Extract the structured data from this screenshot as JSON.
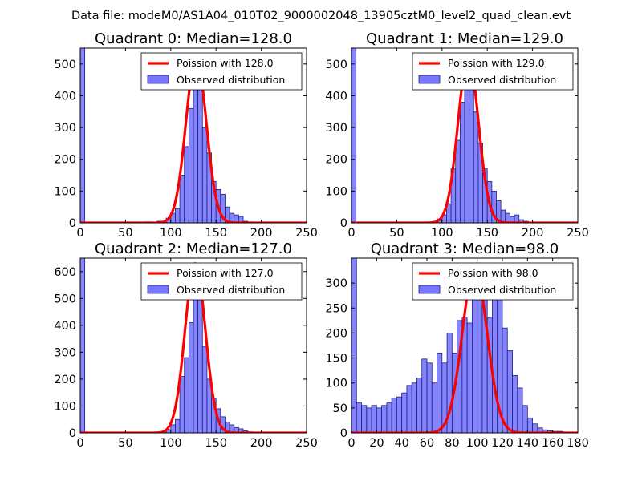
{
  "figure": {
    "suptitle": "Data file: modeM0/AS1A04_010T02_9000002048_13905cztM0_level2_quad_clean.evt",
    "colors": {
      "hist_fill": "#7777ff",
      "hist_edge": "#20207a",
      "poisson_line": "#ff0000",
      "axis": "#000000"
    }
  },
  "chart_data": [
    {
      "type": "bar",
      "title": "Quadrant 0: Median=128.0",
      "xlim": [
        0,
        250
      ],
      "ylim": [
        0,
        550
      ],
      "xticks": [
        "0",
        "50",
        "100",
        "150",
        "200",
        "250"
      ],
      "yticks": [
        "0",
        "100",
        "200",
        "300",
        "400",
        "500"
      ],
      "legend": {
        "position": "top-right",
        "entries": [
          "Poission with 128.0",
          "Observed distribution"
        ]
      },
      "histogram": {
        "bin_width": 5,
        "bins": [
          {
            "x": 0,
            "y": 550
          },
          {
            "x": 70,
            "y": 3
          },
          {
            "x": 75,
            "y": 3
          },
          {
            "x": 85,
            "y": 5
          },
          {
            "x": 95,
            "y": 15
          },
          {
            "x": 100,
            "y": 30
          },
          {
            "x": 105,
            "y": 45
          },
          {
            "x": 110,
            "y": 150
          },
          {
            "x": 115,
            "y": 240
          },
          {
            "x": 120,
            "y": 360
          },
          {
            "x": 125,
            "y": 460
          },
          {
            "x": 130,
            "y": 440
          },
          {
            "x": 135,
            "y": 300
          },
          {
            "x": 140,
            "y": 220
          },
          {
            "x": 145,
            "y": 130
          },
          {
            "x": 150,
            "y": 105
          },
          {
            "x": 155,
            "y": 90
          },
          {
            "x": 160,
            "y": 50
          },
          {
            "x": 165,
            "y": 30
          },
          {
            "x": 170,
            "y": 25
          },
          {
            "x": 175,
            "y": 20
          },
          {
            "x": 180,
            "y": 5
          },
          {
            "x": 185,
            "y": 3
          },
          {
            "x": 190,
            "y": 2
          }
        ]
      },
      "poisson": {
        "mean": 128.0,
        "peak": 520
      }
    },
    {
      "type": "bar",
      "title": "Quadrant 1: Median=129.0",
      "xlim": [
        0,
        250
      ],
      "ylim": [
        0,
        550
      ],
      "xticks": [
        "0",
        "50",
        "100",
        "150",
        "200",
        "250"
      ],
      "yticks": [
        "0",
        "100",
        "200",
        "300",
        "400",
        "500"
      ],
      "legend": {
        "position": "top-right",
        "entries": [
          "Poission with 129.0",
          "Observed distribution"
        ]
      },
      "histogram": {
        "bin_width": 5,
        "bins": [
          {
            "x": 0,
            "y": 550
          },
          {
            "x": 80,
            "y": 3
          },
          {
            "x": 90,
            "y": 5
          },
          {
            "x": 95,
            "y": 12
          },
          {
            "x": 100,
            "y": 25
          },
          {
            "x": 105,
            "y": 60
          },
          {
            "x": 110,
            "y": 170
          },
          {
            "x": 115,
            "y": 260
          },
          {
            "x": 120,
            "y": 380
          },
          {
            "x": 125,
            "y": 520
          },
          {
            "x": 130,
            "y": 470
          },
          {
            "x": 135,
            "y": 350
          },
          {
            "x": 140,
            "y": 250
          },
          {
            "x": 145,
            "y": 170
          },
          {
            "x": 150,
            "y": 130
          },
          {
            "x": 155,
            "y": 100
          },
          {
            "x": 160,
            "y": 70
          },
          {
            "x": 165,
            "y": 40
          },
          {
            "x": 170,
            "y": 30
          },
          {
            "x": 175,
            "y": 20
          },
          {
            "x": 180,
            "y": 25
          },
          {
            "x": 185,
            "y": 10
          },
          {
            "x": 190,
            "y": 5
          },
          {
            "x": 200,
            "y": 2
          }
        ]
      },
      "poisson": {
        "mean": 129.0,
        "peak": 520
      }
    },
    {
      "type": "bar",
      "title": "Quadrant 2: Median=127.0",
      "xlim": [
        0,
        250
      ],
      "ylim": [
        0,
        650
      ],
      "xticks": [
        "0",
        "50",
        "100",
        "150",
        "200",
        "250"
      ],
      "yticks": [
        "0",
        "100",
        "200",
        "300",
        "400",
        "500",
        "600"
      ],
      "legend": {
        "position": "top-right",
        "entries": [
          "Poission with 127.0",
          "Observed distribution"
        ]
      },
      "histogram": {
        "bin_width": 5,
        "bins": [
          {
            "x": 0,
            "y": 650
          },
          {
            "x": 80,
            "y": 3
          },
          {
            "x": 90,
            "y": 5
          },
          {
            "x": 95,
            "y": 12
          },
          {
            "x": 100,
            "y": 30
          },
          {
            "x": 105,
            "y": 50
          },
          {
            "x": 110,
            "y": 210
          },
          {
            "x": 115,
            "y": 280
          },
          {
            "x": 120,
            "y": 410
          },
          {
            "x": 125,
            "y": 590
          },
          {
            "x": 130,
            "y": 520
          },
          {
            "x": 135,
            "y": 320
          },
          {
            "x": 140,
            "y": 200
          },
          {
            "x": 145,
            "y": 130
          },
          {
            "x": 150,
            "y": 90
          },
          {
            "x": 155,
            "y": 60
          },
          {
            "x": 160,
            "y": 40
          },
          {
            "x": 165,
            "y": 30
          },
          {
            "x": 170,
            "y": 20
          },
          {
            "x": 175,
            "y": 15
          },
          {
            "x": 180,
            "y": 8
          },
          {
            "x": 185,
            "y": 4
          },
          {
            "x": 190,
            "y": 2
          },
          {
            "x": 195,
            "y": 1
          }
        ]
      },
      "poisson": {
        "mean": 127.0,
        "peak": 630
      }
    },
    {
      "type": "bar",
      "title": "Quadrant 3: Median=98.0",
      "xlim": [
        0,
        180
      ],
      "ylim": [
        0,
        350
      ],
      "xticks": [
        "0",
        "20",
        "40",
        "60",
        "80",
        "100",
        "120",
        "140",
        "160",
        "180"
      ],
      "yticks": [
        "0",
        "50",
        "100",
        "150",
        "200",
        "250",
        "300"
      ],
      "legend": {
        "position": "top-right",
        "entries": [
          "Poission with 98.0",
          "Observed distribution"
        ]
      },
      "histogram": {
        "bin_width": 4,
        "bins": [
          {
            "x": 0,
            "y": 350
          },
          {
            "x": 4,
            "y": 60
          },
          {
            "x": 8,
            "y": 55
          },
          {
            "x": 12,
            "y": 50
          },
          {
            "x": 16,
            "y": 55
          },
          {
            "x": 20,
            "y": 50
          },
          {
            "x": 24,
            "y": 55
          },
          {
            "x": 28,
            "y": 60
          },
          {
            "x": 32,
            "y": 70
          },
          {
            "x": 36,
            "y": 72
          },
          {
            "x": 40,
            "y": 80
          },
          {
            "x": 44,
            "y": 95
          },
          {
            "x": 48,
            "y": 100
          },
          {
            "x": 52,
            "y": 110
          },
          {
            "x": 56,
            "y": 148
          },
          {
            "x": 60,
            "y": 140
          },
          {
            "x": 64,
            "y": 100
          },
          {
            "x": 68,
            "y": 160
          },
          {
            "x": 72,
            "y": 140
          },
          {
            "x": 76,
            "y": 200
          },
          {
            "x": 80,
            "y": 160
          },
          {
            "x": 84,
            "y": 225
          },
          {
            "x": 88,
            "y": 230
          },
          {
            "x": 92,
            "y": 220
          },
          {
            "x": 96,
            "y": 270
          },
          {
            "x": 100,
            "y": 340
          },
          {
            "x": 104,
            "y": 300
          },
          {
            "x": 108,
            "y": 230
          },
          {
            "x": 112,
            "y": 320
          },
          {
            "x": 116,
            "y": 270
          },
          {
            "x": 120,
            "y": 210
          },
          {
            "x": 124,
            "y": 165
          },
          {
            "x": 128,
            "y": 115
          },
          {
            "x": 132,
            "y": 90
          },
          {
            "x": 136,
            "y": 55
          },
          {
            "x": 140,
            "y": 30
          },
          {
            "x": 144,
            "y": 18
          },
          {
            "x": 148,
            "y": 10
          },
          {
            "x": 152,
            "y": 6
          },
          {
            "x": 156,
            "y": 4
          },
          {
            "x": 160,
            "y": 3
          },
          {
            "x": 164,
            "y": 3
          },
          {
            "x": 168,
            "y": 1
          }
        ]
      },
      "poisson": {
        "mean": 98.0,
        "peak": 330
      }
    }
  ]
}
